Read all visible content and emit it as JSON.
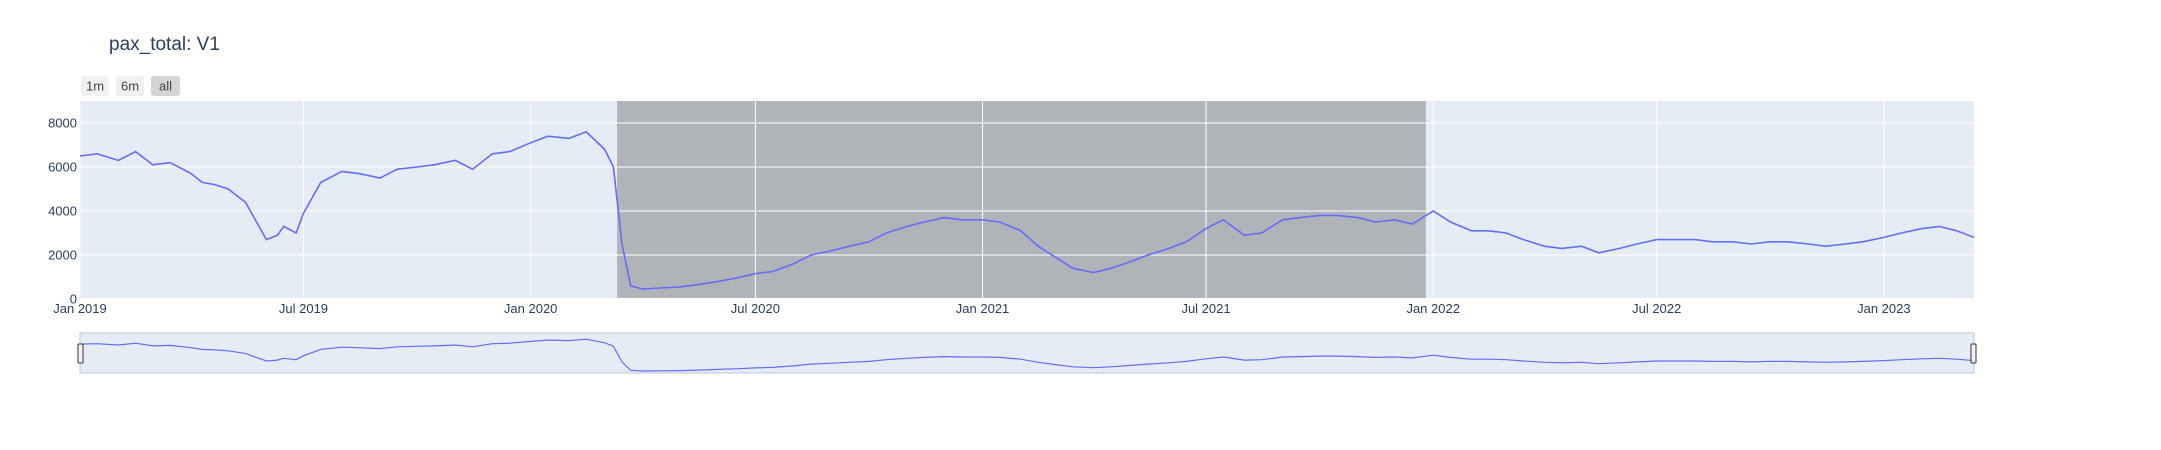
{
  "chart_data": {
    "type": "line",
    "title": "pax_total: V1",
    "xlabel": "",
    "ylabel": "",
    "xlim": [
      "2019-01-01",
      "2023-03-15"
    ],
    "ylim": [
      0,
      9000
    ],
    "grid": true,
    "legend": "none",
    "range_selector": {
      "buttons": [
        "1m",
        "6m",
        "all"
      ],
      "active": "all"
    },
    "shaded_region": [
      "2020-03-11",
      "2021-12-26"
    ],
    "x_tick_labels": [
      "Jan 2019",
      "Jul 2019",
      "Jan 2020",
      "Jul 2020",
      "Jan 2021",
      "Jul 2021",
      "Jan 2022",
      "Jul 2022",
      "Jan 2023"
    ],
    "x_tick_values": [
      "2019-01-01",
      "2019-07-01",
      "2020-01-01",
      "2020-07-01",
      "2021-01-01",
      "2021-07-01",
      "2022-01-01",
      "2022-07-01",
      "2023-01-01"
    ],
    "y_tick_labels": [
      "0",
      "2000",
      "4000",
      "6000",
      "8000"
    ],
    "y_tick_values": [
      0,
      2000,
      4000,
      6000,
      8000
    ],
    "colors": {
      "line": "#636efa",
      "plot_bg": "#e5ecf6",
      "shade": "#b0b3b8",
      "grid": "#ffffff",
      "text": "#2a3f5f"
    },
    "series": [
      {
        "x": [
          "2019-01-01",
          "2019-01-15",
          "2019-02-01",
          "2019-02-15",
          "2019-03-01",
          "2019-03-15",
          "2019-04-01",
          "2019-04-10",
          "2019-04-20",
          "2019-05-01",
          "2019-05-15",
          "2019-06-01",
          "2019-06-10",
          "2019-06-15",
          "2019-06-25",
          "2019-07-01",
          "2019-07-15",
          "2019-08-01",
          "2019-08-15",
          "2019-09-01",
          "2019-09-15",
          "2019-10-01",
          "2019-10-15",
          "2019-11-01",
          "2019-11-15",
          "2019-12-01",
          "2019-12-15",
          "2020-01-01",
          "2020-01-15",
          "2020-02-01",
          "2020-02-15",
          "2020-03-01",
          "2020-03-08",
          "2020-03-15",
          "2020-03-22",
          "2020-04-01",
          "2020-04-15",
          "2020-05-01",
          "2020-05-15",
          "2020-06-01",
          "2020-06-15",
          "2020-07-01",
          "2020-07-15",
          "2020-08-01",
          "2020-08-15",
          "2020-09-01",
          "2020-09-15",
          "2020-10-01",
          "2020-10-15",
          "2020-11-01",
          "2020-11-15",
          "2020-12-01",
          "2020-12-15",
          "2021-01-01",
          "2021-01-15",
          "2021-02-01",
          "2021-02-15",
          "2021-03-01",
          "2021-03-15",
          "2021-04-01",
          "2021-04-15",
          "2021-05-01",
          "2021-05-15",
          "2021-06-01",
          "2021-06-15",
          "2021-07-01",
          "2021-07-15",
          "2021-08-01",
          "2021-08-15",
          "2021-09-01",
          "2021-09-15",
          "2021-10-01",
          "2021-10-15",
          "2021-11-01",
          "2021-11-15",
          "2021-12-01",
          "2021-12-15",
          "2022-01-01",
          "2022-01-15",
          "2022-02-01",
          "2022-02-15",
          "2022-03-01",
          "2022-03-15",
          "2022-04-01",
          "2022-04-15",
          "2022-05-01",
          "2022-05-15",
          "2022-06-01",
          "2022-06-15",
          "2022-07-01",
          "2022-07-15",
          "2022-08-01",
          "2022-08-15",
          "2022-09-01",
          "2022-09-15",
          "2022-10-01",
          "2022-10-15",
          "2022-11-01",
          "2022-11-15",
          "2022-12-01",
          "2022-12-15",
          "2023-01-01",
          "2023-01-15",
          "2023-02-01",
          "2023-02-15",
          "2023-03-01",
          "2023-03-15"
        ],
        "y": [
          6500,
          6600,
          6300,
          6700,
          6100,
          6200,
          5700,
          5300,
          5200,
          5000,
          4400,
          2700,
          2900,
          3300,
          3000,
          3900,
          5300,
          5800,
          5700,
          5500,
          5900,
          6000,
          6100,
          6300,
          5900,
          6600,
          6700,
          7100,
          7400,
          7300,
          7600,
          6800,
          6000,
          2500,
          600,
          450,
          500,
          550,
          650,
          800,
          950,
          1150,
          1250,
          1600,
          2000,
          2200,
          2400,
          2600,
          3000,
          3300,
          3500,
          3700,
          3600,
          3600,
          3500,
          3100,
          2400,
          1900,
          1400,
          1200,
          1400,
          1700,
          2000,
          2300,
          2600,
          3200,
          3600,
          2900,
          3000,
          3600,
          3700,
          3800,
          3800,
          3700,
          3500,
          3600,
          3400,
          4000,
          3500,
          3100,
          3100,
          3000,
          2700,
          2400,
          2300,
          2400,
          2100,
          2300,
          2500,
          2700,
          2700,
          2700,
          2600,
          2600,
          2500,
          2600,
          2600,
          2500,
          2400,
          2500,
          2600,
          2800,
          3000,
          3200,
          3300,
          3100,
          2800
        ]
      }
    ]
  }
}
